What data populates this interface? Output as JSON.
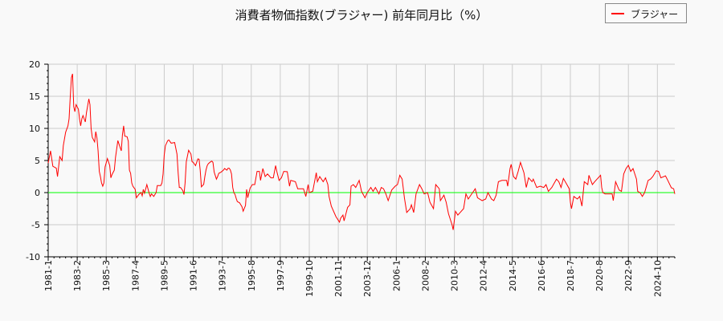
{
  "chart_data": {
    "type": "line",
    "title": "消費者物価指数(ブラジャー) 前年同月比（%）",
    "xlabel": "",
    "ylabel": "",
    "ylim": [
      -10,
      20
    ],
    "yticks": [
      -10,
      -5,
      0,
      5,
      10,
      15,
      20
    ],
    "xlim": [
      "1981-01",
      "2026-01"
    ],
    "xtick_labels": [
      "1981-1",
      "1983-2",
      "1985-3",
      "1987-4",
      "1989-5",
      "1991-6",
      "1993-7",
      "1995-8",
      "1997-9",
      "1999-10",
      "2001-11",
      "2003-12",
      "2006-1",
      "2008-2",
      "2010-3",
      "2012-4",
      "2014-5",
      "2016-6",
      "2018-7",
      "2020-8",
      "2022-9",
      "2024-10"
    ],
    "grid": true,
    "legend_placement": "top-right",
    "reference_line": {
      "y": 0,
      "color": "#00ff00"
    },
    "series": [
      {
        "name": "ブラジャー",
        "color": "#ff0000",
        "points": [
          [
            "1981-01",
            4.6
          ],
          [
            "1981-03",
            6.5
          ],
          [
            "1981-05",
            4.1
          ],
          [
            "1981-08",
            3.8
          ],
          [
            "1981-09",
            2.5
          ],
          [
            "1981-11",
            5.6
          ],
          [
            "1982-01",
            5.0
          ],
          [
            "1982-02",
            7.3
          ],
          [
            "1982-04",
            9.4
          ],
          [
            "1982-06",
            10.4
          ],
          [
            "1982-07",
            11.5
          ],
          [
            "1982-08",
            14.8
          ],
          [
            "1982-09",
            17.9
          ],
          [
            "1982-10",
            18.5
          ],
          [
            "1982-11",
            13.4
          ],
          [
            "1982-12",
            12.6
          ],
          [
            "1983-01",
            13.7
          ],
          [
            "1983-03",
            13.0
          ],
          [
            "1983-04",
            11.5
          ],
          [
            "1983-05",
            10.4
          ],
          [
            "1983-06",
            11.5
          ],
          [
            "1983-07",
            12.0
          ],
          [
            "1983-09",
            11.0
          ],
          [
            "1983-10",
            12.5
          ],
          [
            "1983-12",
            14.6
          ],
          [
            "1984-01",
            13.7
          ],
          [
            "1984-02",
            10.0
          ],
          [
            "1984-03",
            8.6
          ],
          [
            "1984-05",
            7.9
          ],
          [
            "1984-06",
            9.5
          ],
          [
            "1984-07",
            8.5
          ],
          [
            "1984-08",
            6.5
          ],
          [
            "1984-09",
            3.3
          ],
          [
            "1984-10",
            2.5
          ],
          [
            "1984-11",
            1.5
          ],
          [
            "1984-12",
            1.0
          ],
          [
            "1985-01",
            1.5
          ],
          [
            "1985-02",
            4.0
          ],
          [
            "1985-04",
            5.3
          ],
          [
            "1985-06",
            4.2
          ],
          [
            "1985-07",
            2.3
          ],
          [
            "1985-08",
            2.8
          ],
          [
            "1985-10",
            3.5
          ],
          [
            "1985-11",
            5.5
          ],
          [
            "1986-01",
            8.1
          ],
          [
            "1986-03",
            7.0
          ],
          [
            "1986-04",
            6.5
          ],
          [
            "1986-05",
            9.0
          ],
          [
            "1986-06",
            10.4
          ],
          [
            "1986-07",
            8.8
          ],
          [
            "1986-09",
            8.7
          ],
          [
            "1986-10",
            8.0
          ],
          [
            "1986-11",
            3.5
          ],
          [
            "1986-12",
            3.0
          ],
          [
            "1987-01",
            1.5
          ],
          [
            "1987-02",
            1.0
          ],
          [
            "1987-04",
            0.5
          ],
          [
            "1987-05",
            -0.8
          ],
          [
            "1987-07",
            -0.3
          ],
          [
            "1987-09",
            0.0
          ],
          [
            "1987-10",
            -0.5
          ],
          [
            "1987-11",
            0.5
          ],
          [
            "1987-12",
            -0.1
          ],
          [
            "1988-02",
            1.25
          ],
          [
            "1988-04",
            -0.1
          ],
          [
            "1988-05",
            -0.6
          ],
          [
            "1988-06",
            -0.2
          ],
          [
            "1988-07",
            -0.4
          ],
          [
            "1988-08",
            -0.6
          ],
          [
            "1988-10",
            0.0
          ],
          [
            "1988-11",
            1.1
          ],
          [
            "1989-02",
            1.1
          ],
          [
            "1989-03",
            1.5
          ],
          [
            "1989-04",
            2.9
          ],
          [
            "1989-05",
            5.8
          ],
          [
            "1989-06",
            7.3
          ],
          [
            "1989-08",
            8.1
          ],
          [
            "1989-09",
            8.2
          ],
          [
            "1989-11",
            7.7
          ],
          [
            "1990-02",
            7.8
          ],
          [
            "1990-04",
            6.0
          ],
          [
            "1990-05",
            3.0
          ],
          [
            "1990-06",
            0.8
          ],
          [
            "1990-07",
            0.8
          ],
          [
            "1990-09",
            0.3
          ],
          [
            "1990-10",
            -0.3
          ],
          [
            "1990-11",
            1.5
          ],
          [
            "1990-12",
            4.8
          ],
          [
            "1991-02",
            6.6
          ],
          [
            "1991-04",
            6.0
          ],
          [
            "1991-05",
            4.8
          ],
          [
            "1991-06",
            4.7
          ],
          [
            "1991-08",
            4.2
          ],
          [
            "1991-10",
            5.25
          ],
          [
            "1991-11",
            5.2
          ],
          [
            "1991-12",
            3.5
          ],
          [
            "1992-01",
            0.9
          ],
          [
            "1992-03",
            1.3
          ],
          [
            "1992-04",
            2.5
          ],
          [
            "1992-05",
            3.5
          ],
          [
            "1992-06",
            4.2
          ],
          [
            "1992-07",
            4.5
          ],
          [
            "1992-09",
            4.8
          ],
          [
            "1992-10",
            4.9
          ],
          [
            "1992-11",
            4.7
          ],
          [
            "1992-12",
            3.2
          ],
          [
            "1993-02",
            2.1
          ],
          [
            "1993-03",
            2.5
          ],
          [
            "1993-04",
            3.0
          ],
          [
            "1993-06",
            3.2
          ],
          [
            "1993-08",
            3.5
          ],
          [
            "1993-09",
            3.75
          ],
          [
            "1993-11",
            3.5
          ],
          [
            "1993-12",
            3.8
          ],
          [
            "1994-01",
            3.8
          ],
          [
            "1994-02",
            3.5
          ],
          [
            "1994-03",
            2.9
          ],
          [
            "1994-04",
            0.8
          ],
          [
            "1994-05",
            0.0
          ],
          [
            "1994-06",
            -0.3
          ],
          [
            "1994-07",
            -0.9
          ],
          [
            "1994-08",
            -1.4
          ],
          [
            "1994-10",
            -1.6
          ],
          [
            "1994-12",
            -2.2
          ],
          [
            "1995-01",
            -2.9
          ],
          [
            "1995-03",
            -2.0
          ],
          [
            "1995-04",
            0.5
          ],
          [
            "1995-05",
            -0.8
          ],
          [
            "1995-07",
            0.7
          ],
          [
            "1995-09",
            1.25
          ],
          [
            "1995-11",
            1.25
          ],
          [
            "1996-01",
            3.3
          ],
          [
            "1996-03",
            3.3
          ],
          [
            "1996-04",
            1.9
          ],
          [
            "1996-06",
            3.75
          ],
          [
            "1996-08",
            2.5
          ],
          [
            "1996-10",
            2.9
          ],
          [
            "1997-01",
            2.3
          ],
          [
            "1997-03",
            2.3
          ],
          [
            "1997-05",
            4.2
          ],
          [
            "1997-06",
            3.3
          ],
          [
            "1997-08",
            1.9
          ],
          [
            "1997-10",
            2.3
          ],
          [
            "1997-12",
            3.3
          ],
          [
            "1998-03",
            3.25
          ],
          [
            "1998-05",
            1.0
          ],
          [
            "1998-06",
            1.9
          ],
          [
            "1998-10",
            1.7
          ],
          [
            "1998-12",
            0.6
          ],
          [
            "1999-05",
            0.6
          ],
          [
            "1999-07",
            -0.6
          ],
          [
            "1999-09",
            1.25
          ],
          [
            "1999-10",
            0.0
          ],
          [
            "2000-01",
            0.2
          ],
          [
            "2000-04",
            3.1
          ],
          [
            "2000-05",
            1.7
          ],
          [
            "2000-07",
            2.5
          ],
          [
            "2000-10",
            1.7
          ],
          [
            "2000-12",
            2.3
          ],
          [
            "2001-02",
            1.25
          ],
          [
            "2001-03",
            -0.6
          ],
          [
            "2001-05",
            -2.1
          ],
          [
            "2001-09",
            -3.75
          ],
          [
            "2001-12",
            -4.6
          ],
          [
            "2002-01",
            -4.0
          ],
          [
            "2002-03",
            -3.5
          ],
          [
            "2002-04",
            -4.4
          ],
          [
            "2002-07",
            -2.3
          ],
          [
            "2002-09",
            -1.9
          ],
          [
            "2002-10",
            1.0
          ],
          [
            "2002-12",
            1.25
          ],
          [
            "2003-02",
            0.8
          ],
          [
            "2003-05",
            1.9
          ],
          [
            "2003-07",
            0.2
          ],
          [
            "2003-10",
            -0.8
          ],
          [
            "2003-12",
            0.0
          ],
          [
            "2004-03",
            0.8
          ],
          [
            "2004-05",
            0.2
          ],
          [
            "2004-07",
            0.8
          ],
          [
            "2004-10",
            -0.2
          ],
          [
            "2004-12",
            0.8
          ],
          [
            "2005-02",
            0.6
          ],
          [
            "2005-04",
            -0.2
          ],
          [
            "2005-06",
            -1.25
          ],
          [
            "2005-09",
            0.4
          ],
          [
            "2005-12",
            1.0
          ],
          [
            "2006-02",
            1.25
          ],
          [
            "2006-04",
            2.7
          ],
          [
            "2006-06",
            2.1
          ],
          [
            "2006-08",
            -0.8
          ],
          [
            "2006-10",
            -3.1
          ],
          [
            "2007-01",
            -2.5
          ],
          [
            "2007-02",
            -1.9
          ],
          [
            "2007-04",
            -3.1
          ],
          [
            "2007-06",
            -0.2
          ],
          [
            "2007-09",
            1.25
          ],
          [
            "2007-11",
            0.6
          ],
          [
            "2008-01",
            -0.2
          ],
          [
            "2008-04",
            0.0
          ],
          [
            "2008-06",
            -1.5
          ],
          [
            "2008-09",
            -2.5
          ],
          [
            "2008-11",
            1.25
          ],
          [
            "2009-02",
            0.6
          ],
          [
            "2009-03",
            -1.25
          ],
          [
            "2009-06",
            -0.4
          ],
          [
            "2009-08",
            -1.5
          ],
          [
            "2009-10",
            -3.3
          ],
          [
            "2010-01",
            -5.0
          ],
          [
            "2010-02",
            -5.8
          ],
          [
            "2010-04",
            -2.9
          ],
          [
            "2010-06",
            -3.5
          ],
          [
            "2010-08",
            -3.1
          ],
          [
            "2010-11",
            -2.5
          ],
          [
            "2011-01",
            -0.2
          ],
          [
            "2011-03",
            -1.0
          ],
          [
            "2011-06",
            -0.2
          ],
          [
            "2011-09",
            0.6
          ],
          [
            "2011-11",
            -0.8
          ],
          [
            "2012-03",
            -1.25
          ],
          [
            "2012-06",
            -1.0
          ],
          [
            "2012-08",
            0.0
          ],
          [
            "2012-11",
            -1.0
          ],
          [
            "2013-01",
            -1.25
          ],
          [
            "2013-03",
            -0.4
          ],
          [
            "2013-05",
            1.7
          ],
          [
            "2013-08",
            1.9
          ],
          [
            "2013-12",
            1.9
          ],
          [
            "2014-01",
            1.0
          ],
          [
            "2014-03",
            3.75
          ],
          [
            "2014-04",
            4.4
          ],
          [
            "2014-06",
            2.5
          ],
          [
            "2014-08",
            2.1
          ],
          [
            "2014-10",
            3.3
          ],
          [
            "2014-12",
            4.7
          ],
          [
            "2015-03",
            3.1
          ],
          [
            "2015-05",
            0.8
          ],
          [
            "2015-07",
            2.3
          ],
          [
            "2015-10",
            1.7
          ],
          [
            "2015-11",
            2.1
          ],
          [
            "2016-02",
            0.8
          ],
          [
            "2016-05",
            1.0
          ],
          [
            "2016-08",
            0.8
          ],
          [
            "2016-10",
            1.25
          ],
          [
            "2016-12",
            0.2
          ],
          [
            "2017-03",
            0.8
          ],
          [
            "2017-07",
            2.1
          ],
          [
            "2017-09",
            1.7
          ],
          [
            "2017-11",
            0.8
          ],
          [
            "2018-01",
            2.2
          ],
          [
            "2018-04",
            1.25
          ],
          [
            "2018-06",
            0.6
          ],
          [
            "2018-07",
            -1.5
          ],
          [
            "2018-08",
            -2.5
          ],
          [
            "2018-10",
            -0.6
          ],
          [
            "2019-01",
            -1.0
          ],
          [
            "2019-03",
            -0.6
          ],
          [
            "2019-05",
            -2.1
          ],
          [
            "2019-07",
            1.7
          ],
          [
            "2019-10",
            1.25
          ],
          [
            "2019-11",
            2.7
          ],
          [
            "2020-02",
            1.25
          ],
          [
            "2020-04",
            1.7
          ],
          [
            "2020-06",
            2.1
          ],
          [
            "2020-09",
            2.7
          ],
          [
            "2020-10",
            0.8
          ],
          [
            "2020-11",
            0.0
          ],
          [
            "2021-01",
            -0.2
          ],
          [
            "2021-04",
            -0.2
          ],
          [
            "2021-07",
            -0.2
          ],
          [
            "2021-08",
            -1.25
          ],
          [
            "2021-10",
            1.7
          ],
          [
            "2022-01",
            0.4
          ],
          [
            "2022-03",
            0.2
          ],
          [
            "2022-05",
            2.9
          ],
          [
            "2022-07",
            3.75
          ],
          [
            "2022-09",
            4.25
          ],
          [
            "2022-11",
            3.3
          ],
          [
            "2023-01",
            3.75
          ],
          [
            "2023-04",
            2.1
          ],
          [
            "2023-05",
            0.2
          ],
          [
            "2023-07",
            0.0
          ],
          [
            "2023-09",
            -0.6
          ],
          [
            "2023-11",
            0.0
          ],
          [
            "2024-02",
            1.9
          ],
          [
            "2024-04",
            2.1
          ],
          [
            "2024-06",
            2.5
          ],
          [
            "2024-09",
            3.4
          ],
          [
            "2024-11",
            3.3
          ],
          [
            "2025-01",
            2.3
          ],
          [
            "2025-05",
            2.6
          ],
          [
            "2025-07",
            1.9
          ],
          [
            "2025-10",
            0.75
          ],
          [
            "2025-12",
            0.6
          ],
          [
            "2026-01",
            -0.2
          ]
        ]
      }
    ]
  }
}
